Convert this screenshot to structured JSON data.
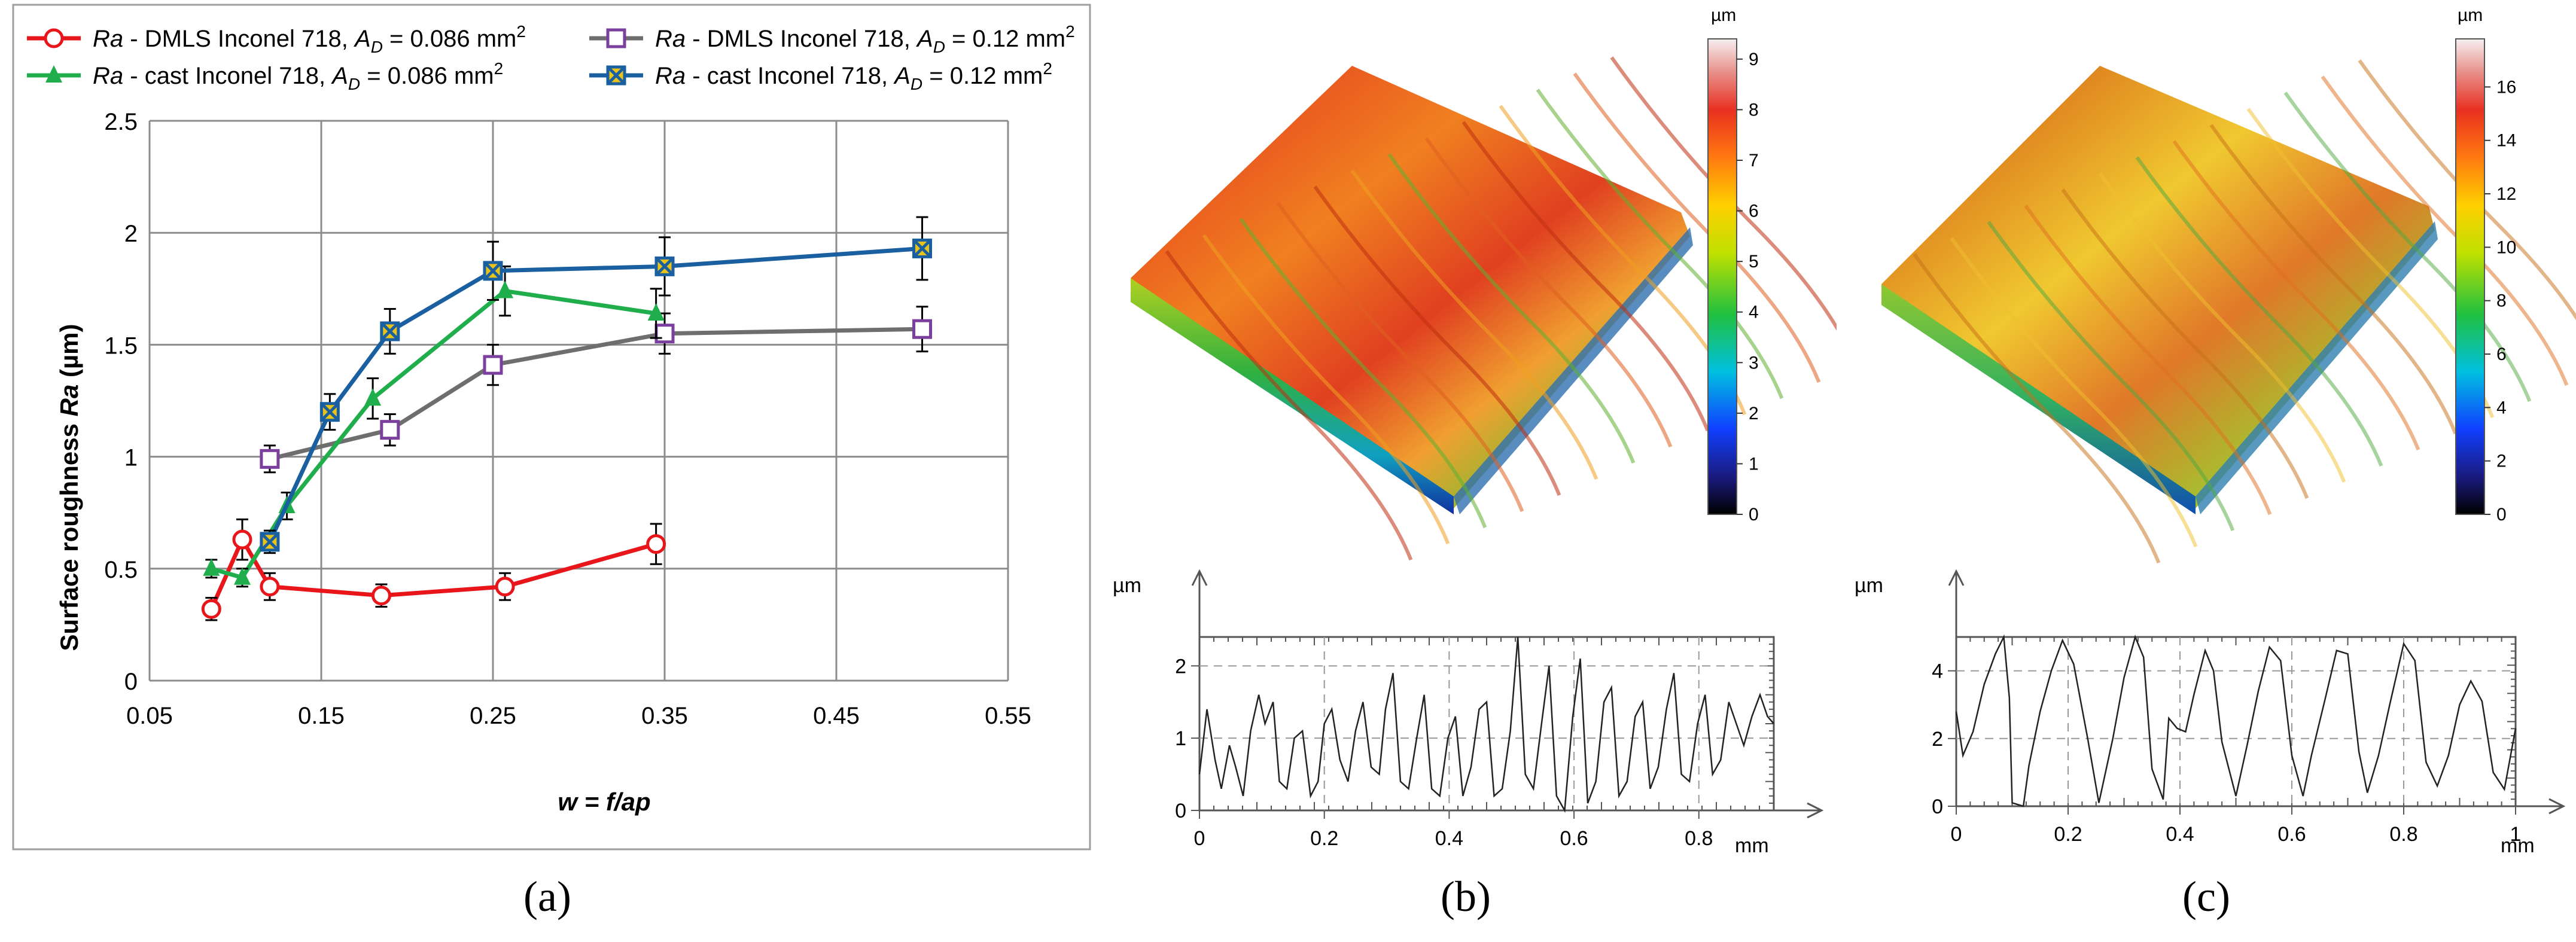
{
  "chart_data": [
    {
      "panel": "(a)",
      "type": "line",
      "xlabel": "w = f/ap",
      "ylabel": "Surface roughness Ra (µm)",
      "xlim": [
        0.05,
        0.55
      ],
      "ylim": [
        0,
        2.5
      ],
      "xticks": [
        "0.05",
        "0.15",
        "0.25",
        "0.35",
        "0.45",
        "0.55"
      ],
      "yticks": [
        "0",
        "0.5",
        "1",
        "1.5",
        "2",
        "2.5"
      ],
      "grid": true,
      "legend_position": "top",
      "series": [
        {
          "name": "Ra - DMLS Inconel 718, AD = 0.086 mm2",
          "label_italic": "Ra",
          "label_mid": " - DMLS Inconel 718, ",
          "label_sym": "A",
          "label_sub": "D",
          "label_val": " = 0.086 mm",
          "label_sup": "2",
          "color": "#e8161b",
          "marker": "circle",
          "x": [
            0.086,
            0.104,
            0.12,
            0.185,
            0.257,
            0.345
          ],
          "y": [
            0.32,
            0.63,
            0.42,
            0.38,
            0.42,
            0.61
          ],
          "err": [
            0.05,
            0.09,
            0.06,
            0.05,
            0.06,
            0.09
          ]
        },
        {
          "name": "Ra - DMLS Inconel 718, AD = 0.12 mm2",
          "label_italic": "Ra",
          "label_mid": " - DMLS Inconel 718, ",
          "label_sym": "A",
          "label_sub": "D",
          "label_val": " = 0.12 mm",
          "label_sup": "2",
          "color": "#6e6e6e",
          "marker_color": "#7b3f9e",
          "marker": "square",
          "x": [
            0.12,
            0.19,
            0.25,
            0.35,
            0.5
          ],
          "y": [
            0.99,
            1.12,
            1.41,
            1.55,
            1.57
          ],
          "err": [
            0.06,
            0.07,
            0.09,
            0.09,
            0.1
          ]
        },
        {
          "name": "Ra - cast Inconel 718, AD = 0.086 mm2",
          "label_italic": "Ra",
          "label_mid": " - cast Inconel 718, ",
          "label_sym": "A",
          "label_sub": "D",
          "label_val": " = 0.086 mm",
          "label_sup": "2",
          "color": "#1fae4b",
          "marker": "triangle",
          "x": [
            0.086,
            0.104,
            0.13,
            0.18,
            0.257,
            0.345
          ],
          "y": [
            0.5,
            0.46,
            0.78,
            1.26,
            1.74,
            1.64
          ],
          "err": [
            0.04,
            0.04,
            0.06,
            0.09,
            0.11,
            0.11
          ]
        },
        {
          "name": "Ra - cast Inconel 718, AD = 0.12 mm2",
          "label_italic": "Ra",
          "label_mid": " - cast Inconel 718, ",
          "label_sym": "A",
          "label_sub": "D",
          "label_val": " = 0.12 mm",
          "label_sup": "2",
          "color": "#1a5fa0",
          "marker": "xsquare",
          "marker_fill": "#e8c31a",
          "x": [
            0.12,
            0.155,
            0.19,
            0.25,
            0.35,
            0.5
          ],
          "y": [
            0.62,
            1.2,
            1.56,
            1.83,
            1.85,
            1.93
          ],
          "err": [
            0.05,
            0.08,
            0.1,
            0.13,
            0.13,
            0.14
          ]
        }
      ]
    },
    {
      "panel": "(b)",
      "type": "line",
      "xlabel": "",
      "ylabel": "µm",
      "xunit": "mm",
      "xlim": [
        0,
        0.92
      ],
      "ylim": [
        0,
        2.4
      ],
      "xticks": [
        "0",
        "0.2",
        "0.4",
        "0.6",
        "0.8"
      ],
      "yticks": [
        "0",
        "1",
        "2"
      ],
      "grid": true,
      "x": [
        0,
        0.012,
        0.025,
        0.035,
        0.048,
        0.058,
        0.07,
        0.082,
        0.095,
        0.105,
        0.118,
        0.128,
        0.14,
        0.152,
        0.165,
        0.178,
        0.19,
        0.2,
        0.212,
        0.225,
        0.238,
        0.25,
        0.262,
        0.275,
        0.288,
        0.298,
        0.31,
        0.322,
        0.335,
        0.348,
        0.36,
        0.372,
        0.385,
        0.398,
        0.41,
        0.422,
        0.435,
        0.448,
        0.46,
        0.472,
        0.485,
        0.498,
        0.51,
        0.522,
        0.535,
        0.548,
        0.56,
        0.572,
        0.585,
        0.598,
        0.61,
        0.622,
        0.635,
        0.648,
        0.66,
        0.672,
        0.685,
        0.698,
        0.71,
        0.722,
        0.735,
        0.748,
        0.76,
        0.772,
        0.785,
        0.798,
        0.81,
        0.822,
        0.835,
        0.848,
        0.86,
        0.872,
        0.885,
        0.898,
        0.91,
        0.92
      ],
      "y": [
        0.5,
        1.4,
        0.7,
        0.3,
        0.9,
        0.6,
        0.2,
        1.1,
        1.6,
        1.2,
        1.5,
        0.4,
        0.3,
        1.0,
        1.1,
        0.2,
        0.4,
        1.2,
        1.4,
        0.7,
        0.4,
        1.1,
        1.5,
        0.6,
        0.5,
        1.4,
        1.9,
        0.4,
        0.3,
        1.0,
        1.6,
        0.3,
        0.2,
        1.0,
        1.3,
        0.2,
        0.6,
        1.4,
        1.5,
        0.2,
        0.3,
        1.1,
        2.4,
        0.5,
        0.3,
        1.2,
        2.0,
        0.2,
        0.0,
        1.3,
        2.1,
        0.1,
        0.4,
        1.5,
        1.7,
        0.2,
        0.4,
        1.3,
        1.5,
        0.3,
        0.6,
        1.4,
        1.9,
        0.5,
        0.4,
        1.2,
        1.6,
        0.5,
        0.7,
        1.5,
        1.2,
        0.9,
        1.3,
        1.6,
        1.3,
        1.2
      ]
    },
    {
      "panel": "(c)",
      "type": "line",
      "xlabel": "",
      "ylabel": "µm",
      "xunit": "mm",
      "xlim": [
        0,
        1
      ],
      "ylim": [
        0,
        5
      ],
      "xticks": [
        "0",
        "0.2",
        "0.4",
        "0.6",
        "0.8",
        "1"
      ],
      "yticks": [
        "0",
        "2",
        "4"
      ],
      "grid": true,
      "x": [
        0,
        0.012,
        0.03,
        0.05,
        0.07,
        0.085,
        0.095,
        0.1,
        0.12,
        0.13,
        0.15,
        0.17,
        0.19,
        0.21,
        0.235,
        0.255,
        0.28,
        0.3,
        0.32,
        0.335,
        0.35,
        0.37,
        0.38,
        0.395,
        0.41,
        0.425,
        0.445,
        0.46,
        0.475,
        0.5,
        0.52,
        0.54,
        0.56,
        0.58,
        0.6,
        0.62,
        0.635,
        0.66,
        0.68,
        0.7,
        0.72,
        0.735,
        0.755,
        0.775,
        0.8,
        0.82,
        0.84,
        0.86,
        0.88,
        0.9,
        0.92,
        0.94,
        0.96,
        0.98,
        1.0
      ],
      "y": [
        2.8,
        1.5,
        2.2,
        3.6,
        4.5,
        5.0,
        3.2,
        0.1,
        0.0,
        1.2,
        2.8,
        4.0,
        4.9,
        4.2,
        2.0,
        0.1,
        2.0,
        3.8,
        5.0,
        4.4,
        1.1,
        0.2,
        2.6,
        2.3,
        2.2,
        3.3,
        4.6,
        4.0,
        1.9,
        0.3,
        1.8,
        3.4,
        4.7,
        4.3,
        1.5,
        0.3,
        1.5,
        3.2,
        4.6,
        4.5,
        1.6,
        0.4,
        1.5,
        3.0,
        4.8,
        4.3,
        1.3,
        0.6,
        1.5,
        3.0,
        3.7,
        3.1,
        1.0,
        0.5,
        2.3
      ]
    },
    {
      "panel": "(b)",
      "type": "heatmap",
      "colorbar_unit": "µm",
      "colorbar_ticks": [
        "0",
        "1",
        "2",
        "3",
        "4",
        "5",
        "6",
        "7",
        "8",
        "9"
      ],
      "range": [
        0,
        9.4
      ]
    },
    {
      "panel": "(c)",
      "type": "heatmap",
      "colorbar_unit": "µm",
      "colorbar_ticks": [
        "0",
        "2",
        "4",
        "6",
        "8",
        "10",
        "12",
        "14",
        "16"
      ],
      "range": [
        0,
        17.8
      ]
    }
  ],
  "captions": {
    "a": "(a)",
    "b": "(b)",
    "c": "(c)"
  },
  "profile_labels": {
    "b_unit": "µm",
    "b_xunit": "mm",
    "c_unit": "µm",
    "c_xunit": "mm"
  }
}
